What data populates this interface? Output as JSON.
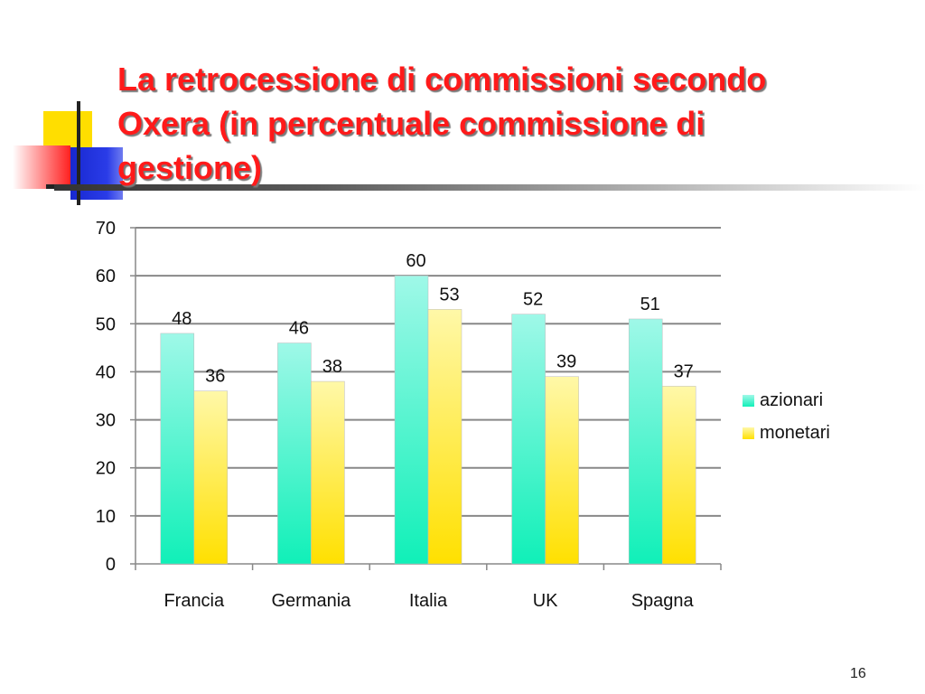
{
  "slide": {
    "title_lines": [
      "La retrocessione di commissioni secondo",
      "Oxera (in percentuale commissione di",
      "gestione)"
    ],
    "page_number": "16"
  },
  "colors": {
    "title": "#ff1a1a",
    "azionari": "#1ff0c0",
    "monetari": "#ffe81a",
    "gridline": "#888888"
  },
  "chart_data": {
    "type": "bar",
    "categories": [
      "Francia",
      "Germania",
      "Italia",
      "UK",
      "Spagna"
    ],
    "series": [
      {
        "name": "azionari",
        "values": [
          48,
          46,
          60,
          52,
          51
        ]
      },
      {
        "name": "monetari",
        "values": [
          36,
          38,
          53,
          39,
          37
        ]
      }
    ],
    "ylim": [
      0,
      70
    ],
    "yticks": [
      0,
      10,
      20,
      30,
      40,
      50,
      60,
      70
    ],
    "data_labels": true,
    "grid": true,
    "legend_position": "right"
  }
}
